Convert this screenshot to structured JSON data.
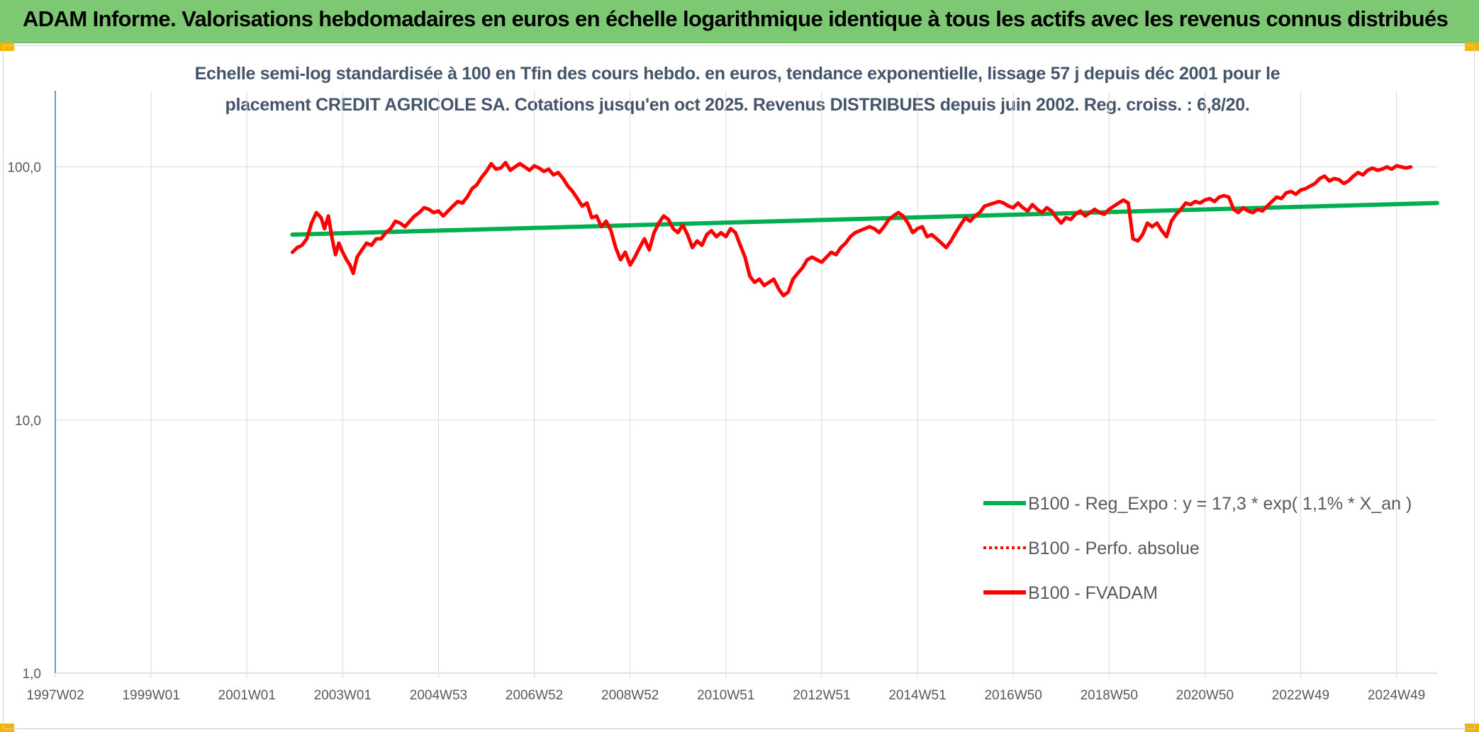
{
  "header": {
    "title": "ADAM Informe. Valorisations hebdomadaires en euros en échelle logarithmique identique à tous les actifs avec les revenus connus distribués"
  },
  "chart_data": {
    "type": "line",
    "title_line1": "Echelle semi-log standardisée à 100 en Tfin des cours hebdo. en euros, tendance exponentielle, lissage 57 j depuis déc 2001 pour le",
    "title_line2": "placement CREDIT AGRICOLE SA. Cotations jusqu'en oct 2025. Revenus DISTRIBUES depuis juin 2002. Reg. croiss. : 6,8/20.",
    "xlabel": "",
    "ylabel": "",
    "y_scale": "log",
    "ylim": [
      1,
      200
    ],
    "xlim": [
      1997.0,
      2025.85
    ],
    "grid": true,
    "legend_position": "bottom-right",
    "x_ticks": [
      {
        "label": "1997W02",
        "x": 1997.0
      },
      {
        "label": "1999W01",
        "x": 1999.0
      },
      {
        "label": "2001W01",
        "x": 2001.0
      },
      {
        "label": "2003W01",
        "x": 2003.0
      },
      {
        "label": "2004W53",
        "x": 2005.0
      },
      {
        "label": "2006W52",
        "x": 2007.0
      },
      {
        "label": "2008W52",
        "x": 2009.0
      },
      {
        "label": "2010W51",
        "x": 2011.0
      },
      {
        "label": "2012W51",
        "x": 2013.0
      },
      {
        "label": "2014W51",
        "x": 2015.0
      },
      {
        "label": "2016W50",
        "x": 2017.0
      },
      {
        "label": "2018W50",
        "x": 2019.0
      },
      {
        "label": "2020W50",
        "x": 2021.0
      },
      {
        "label": "2022W49",
        "x": 2023.0
      },
      {
        "label": "2024W49",
        "x": 2025.0
      }
    ],
    "y_ticks": [
      {
        "label": "1,0",
        "y": 1
      },
      {
        "label": "10,0",
        "y": 10
      },
      {
        "label": "100,0",
        "y": 100
      }
    ],
    "colors": {
      "trend": "#00b050",
      "perf": "#ff0000",
      "fvadam": "#ff0000",
      "grid": "#d9d9d9",
      "axis": "#4472c4"
    },
    "series": [
      {
        "name": "B100 - Reg_Expo : y = 17,3 * exp( 1,1% *  X_an )",
        "style": "solid",
        "color": "#00b050",
        "points": [
          [
            2001.95,
            54.0
          ],
          [
            2025.85,
            72.0
          ]
        ]
      },
      {
        "name": "B100 - Perfo. absolue",
        "style": "dotted",
        "color": "#ff0000",
        "points": []
      },
      {
        "name": "B100 - FVADAM",
        "style": "solid",
        "color": "#ff0000",
        "points": [
          [
            2001.95,
            46
          ],
          [
            2002.05,
            48
          ],
          [
            2002.15,
            49
          ],
          [
            2002.25,
            52
          ],
          [
            2002.35,
            60
          ],
          [
            2002.45,
            66
          ],
          [
            2002.55,
            63
          ],
          [
            2002.62,
            57
          ],
          [
            2002.7,
            64
          ],
          [
            2002.78,
            52
          ],
          [
            2002.85,
            45
          ],
          [
            2002.92,
            50
          ],
          [
            2003.0,
            46
          ],
          [
            2003.08,
            43
          ],
          [
            2003.15,
            41
          ],
          [
            2003.22,
            38
          ],
          [
            2003.3,
            44
          ],
          [
            2003.4,
            47
          ],
          [
            2003.5,
            50
          ],
          [
            2003.6,
            49
          ],
          [
            2003.7,
            52
          ],
          [
            2003.8,
            52
          ],
          [
            2003.9,
            55
          ],
          [
            2004.0,
            57
          ],
          [
            2004.1,
            61
          ],
          [
            2004.2,
            60
          ],
          [
            2004.3,
            58
          ],
          [
            2004.4,
            61
          ],
          [
            2004.5,
            64
          ],
          [
            2004.6,
            66
          ],
          [
            2004.7,
            69
          ],
          [
            2004.8,
            68
          ],
          [
            2004.9,
            66
          ],
          [
            2005.0,
            67
          ],
          [
            2005.1,
            64
          ],
          [
            2005.2,
            67
          ],
          [
            2005.3,
            70
          ],
          [
            2005.4,
            73
          ],
          [
            2005.5,
            72
          ],
          [
            2005.6,
            76
          ],
          [
            2005.7,
            82
          ],
          [
            2005.8,
            85
          ],
          [
            2005.9,
            91
          ],
          [
            2006.0,
            96
          ],
          [
            2006.1,
            103
          ],
          [
            2006.2,
            98
          ],
          [
            2006.3,
            99
          ],
          [
            2006.4,
            104
          ],
          [
            2006.5,
            97
          ],
          [
            2006.6,
            100
          ],
          [
            2006.7,
            103
          ],
          [
            2006.8,
            100
          ],
          [
            2006.9,
            97
          ],
          [
            2007.0,
            101
          ],
          [
            2007.1,
            99
          ],
          [
            2007.2,
            96
          ],
          [
            2007.3,
            98
          ],
          [
            2007.4,
            93
          ],
          [
            2007.5,
            95
          ],
          [
            2007.6,
            90
          ],
          [
            2007.7,
            84
          ],
          [
            2007.8,
            80
          ],
          [
            2007.9,
            75
          ],
          [
            2008.0,
            70
          ],
          [
            2008.1,
            72
          ],
          [
            2008.2,
            63
          ],
          [
            2008.3,
            64
          ],
          [
            2008.4,
            58
          ],
          [
            2008.5,
            61
          ],
          [
            2008.6,
            56
          ],
          [
            2008.7,
            48
          ],
          [
            2008.8,
            43
          ],
          [
            2008.9,
            46
          ],
          [
            2009.0,
            41
          ],
          [
            2009.1,
            44
          ],
          [
            2009.2,
            48
          ],
          [
            2009.3,
            52
          ],
          [
            2009.4,
            47
          ],
          [
            2009.5,
            55
          ],
          [
            2009.6,
            60
          ],
          [
            2009.7,
            64
          ],
          [
            2009.8,
            62
          ],
          [
            2009.9,
            57
          ],
          [
            2010.0,
            55
          ],
          [
            2010.1,
            59
          ],
          [
            2010.2,
            54
          ],
          [
            2010.3,
            48
          ],
          [
            2010.4,
            51
          ],
          [
            2010.5,
            49
          ],
          [
            2010.6,
            54
          ],
          [
            2010.7,
            56
          ],
          [
            2010.8,
            53
          ],
          [
            2010.9,
            55
          ],
          [
            2011.0,
            53
          ],
          [
            2011.1,
            57
          ],
          [
            2011.2,
            55
          ],
          [
            2011.3,
            49
          ],
          [
            2011.4,
            44
          ],
          [
            2011.5,
            37
          ],
          [
            2011.6,
            35
          ],
          [
            2011.7,
            36
          ],
          [
            2011.8,
            34
          ],
          [
            2011.9,
            35
          ],
          [
            2012.0,
            36
          ],
          [
            2012.1,
            33
          ],
          [
            2012.2,
            31
          ],
          [
            2012.3,
            32
          ],
          [
            2012.4,
            36
          ],
          [
            2012.5,
            38
          ],
          [
            2012.6,
            40
          ],
          [
            2012.7,
            43
          ],
          [
            2012.8,
            44
          ],
          [
            2012.9,
            43
          ],
          [
            2013.0,
            42
          ],
          [
            2013.1,
            44
          ],
          [
            2013.2,
            46
          ],
          [
            2013.3,
            45
          ],
          [
            2013.4,
            48
          ],
          [
            2013.5,
            50
          ],
          [
            2013.6,
            53
          ],
          [
            2013.7,
            55
          ],
          [
            2013.8,
            56
          ],
          [
            2013.9,
            57
          ],
          [
            2014.0,
            58
          ],
          [
            2014.1,
            57
          ],
          [
            2014.2,
            55
          ],
          [
            2014.3,
            58
          ],
          [
            2014.4,
            62
          ],
          [
            2014.5,
            64
          ],
          [
            2014.6,
            66
          ],
          [
            2014.7,
            64
          ],
          [
            2014.8,
            60
          ],
          [
            2014.9,
            55
          ],
          [
            2015.0,
            57
          ],
          [
            2015.1,
            58
          ],
          [
            2015.2,
            53
          ],
          [
            2015.3,
            54
          ],
          [
            2015.4,
            52
          ],
          [
            2015.5,
            50
          ],
          [
            2015.6,
            48
          ],
          [
            2015.7,
            51
          ],
          [
            2015.8,
            55
          ],
          [
            2015.9,
            59
          ],
          [
            2016.0,
            63
          ],
          [
            2016.1,
            61
          ],
          [
            2016.2,
            64
          ],
          [
            2016.3,
            66
          ],
          [
            2016.4,
            70
          ],
          [
            2016.5,
            71
          ],
          [
            2016.6,
            72
          ],
          [
            2016.7,
            73
          ],
          [
            2016.8,
            72
          ],
          [
            2016.9,
            70
          ],
          [
            2017.0,
            69
          ],
          [
            2017.1,
            72
          ],
          [
            2017.2,
            69
          ],
          [
            2017.3,
            67
          ],
          [
            2017.4,
            71
          ],
          [
            2017.5,
            68
          ],
          [
            2017.6,
            66
          ],
          [
            2017.7,
            69
          ],
          [
            2017.8,
            67
          ],
          [
            2017.9,
            63
          ],
          [
            2018.0,
            60
          ],
          [
            2018.1,
            63
          ],
          [
            2018.2,
            62
          ],
          [
            2018.3,
            65
          ],
          [
            2018.4,
            67
          ],
          [
            2018.5,
            64
          ],
          [
            2018.6,
            66
          ],
          [
            2018.7,
            68
          ],
          [
            2018.8,
            66
          ],
          [
            2018.9,
            65
          ],
          [
            2019.0,
            68
          ],
          [
            2019.1,
            70
          ],
          [
            2019.2,
            72
          ],
          [
            2019.3,
            74
          ],
          [
            2019.4,
            72
          ],
          [
            2019.5,
            52
          ],
          [
            2019.6,
            51
          ],
          [
            2019.7,
            54
          ],
          [
            2019.8,
            60
          ],
          [
            2019.9,
            58
          ],
          [
            2020.0,
            60
          ],
          [
            2020.1,
            56
          ],
          [
            2020.2,
            53
          ],
          [
            2020.3,
            61
          ],
          [
            2020.4,
            65
          ],
          [
            2020.5,
            68
          ],
          [
            2020.6,
            72
          ],
          [
            2020.7,
            71
          ],
          [
            2020.8,
            73
          ],
          [
            2020.9,
            72
          ],
          [
            2021.0,
            74
          ],
          [
            2021.1,
            75
          ],
          [
            2021.2,
            73
          ],
          [
            2021.3,
            76
          ],
          [
            2021.4,
            77
          ],
          [
            2021.5,
            76
          ],
          [
            2021.6,
            68
          ],
          [
            2021.7,
            66
          ],
          [
            2021.8,
            69
          ],
          [
            2021.9,
            67
          ],
          [
            2022.0,
            66
          ],
          [
            2022.1,
            68
          ],
          [
            2022.2,
            67
          ],
          [
            2022.3,
            70
          ],
          [
            2022.4,
            73
          ],
          [
            2022.5,
            76
          ],
          [
            2022.6,
            75
          ],
          [
            2022.7,
            79
          ],
          [
            2022.8,
            80
          ],
          [
            2022.9,
            78
          ],
          [
            2023.0,
            81
          ],
          [
            2023.1,
            82
          ],
          [
            2023.2,
            84
          ],
          [
            2023.3,
            86
          ],
          [
            2023.4,
            90
          ],
          [
            2023.5,
            92
          ],
          [
            2023.6,
            88
          ],
          [
            2023.7,
            90
          ],
          [
            2023.8,
            89
          ],
          [
            2023.9,
            86
          ],
          [
            2024.0,
            88
          ],
          [
            2024.1,
            92
          ],
          [
            2024.2,
            95
          ],
          [
            2024.3,
            93
          ],
          [
            2024.4,
            97
          ],
          [
            2024.5,
            99
          ],
          [
            2024.6,
            97
          ],
          [
            2024.7,
            98
          ],
          [
            2024.8,
            100
          ],
          [
            2024.9,
            98
          ],
          [
            2025.0,
            101
          ],
          [
            2025.1,
            100
          ],
          [
            2025.2,
            99
          ],
          [
            2025.3,
            100
          ]
        ]
      }
    ]
  }
}
